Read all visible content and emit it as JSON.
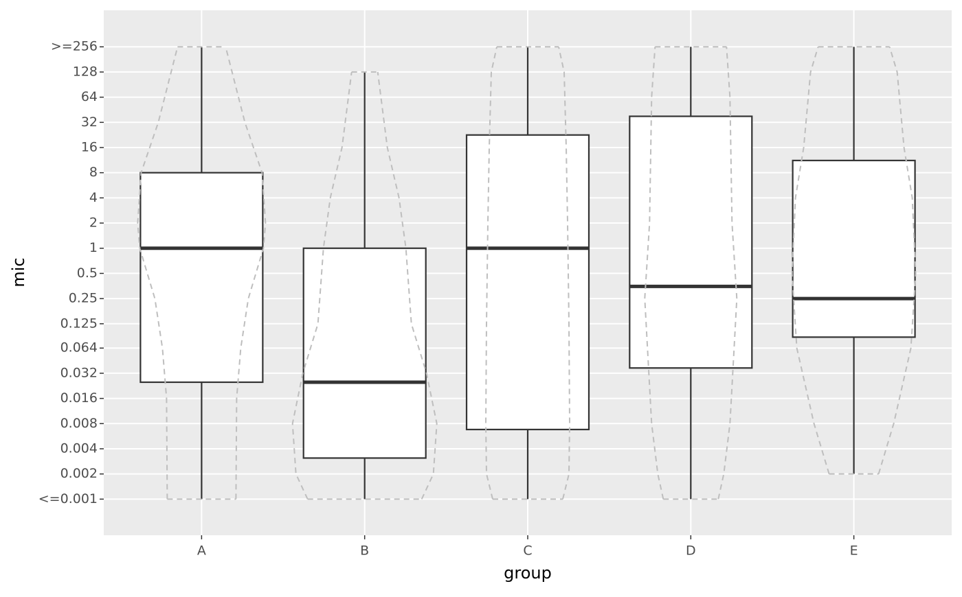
{
  "chart_data": {
    "type": "boxplot",
    "x_label": "group",
    "y_label": "mic",
    "categories": [
      "A",
      "B",
      "C",
      "D",
      "E"
    ],
    "log_scale": "y",
    "log_base": 2,
    "grid": true,
    "box_color": "#333333",
    "box_fill": "#ffffff",
    "violin_color": "#bebebe",
    "ylim": [
      0.00037,
      700
    ],
    "yticks": [
      {
        "value": 0.001,
        "label": "<=0.001"
      },
      0.002,
      0.004,
      0.008,
      0.016,
      0.032,
      0.064,
      0.125,
      0.25,
      0.5,
      1,
      2,
      4,
      8,
      16,
      32,
      64,
      128,
      {
        "value": 256,
        "label": ">=256"
      }
    ],
    "boxes": [
      {
        "min": 0.001,
        "q1": 0.025,
        "median": 1,
        "q3": 8,
        "max": 256,
        "violin_mic": [
          0.001,
          0.016,
          0.064,
          0.25,
          1,
          2,
          8,
          32,
          256
        ],
        "violin_width": [
          50,
          51,
          57,
          68,
          90,
          93,
          88,
          63,
          35
        ]
      },
      {
        "min": 0.001,
        "q1": 0.0031,
        "median": 0.025,
        "q3": 1,
        "max": 128,
        "violin_mic": [
          0.001,
          0.002,
          0.008,
          0.032,
          0.125,
          1,
          4,
          16,
          128
        ],
        "violin_width": [
          83,
          100,
          105,
          90,
          68,
          60,
          50,
          33,
          19
        ]
      },
      {
        "min": 0.001,
        "q1": 0.0068,
        "median": 1,
        "q3": 22.6,
        "max": 256,
        "violin_mic": [
          0.001,
          0.002,
          0.008,
          0.125,
          2,
          16,
          128,
          256
        ],
        "violin_width": [
          51,
          60,
          61,
          60,
          58,
          56,
          53,
          45
        ]
      },
      {
        "min": 0.001,
        "q1": 0.037,
        "median": 0.35,
        "q3": 37.8,
        "max": 256,
        "violin_mic": [
          0.001,
          0.002,
          0.008,
          0.25,
          2,
          64,
          256
        ],
        "violin_width": [
          40,
          48,
          57,
          67,
          60,
          57,
          52
        ]
      },
      {
        "min": 0.002,
        "q1": 0.0865,
        "median": 0.25,
        "q3": 11.2,
        "max": 256,
        "violin_mic": [
          0.002,
          0.008,
          0.064,
          0.5,
          4,
          16,
          128,
          256
        ],
        "violin_width": [
          36,
          58,
          83,
          90,
          85,
          73,
          63,
          52
        ]
      }
    ]
  }
}
